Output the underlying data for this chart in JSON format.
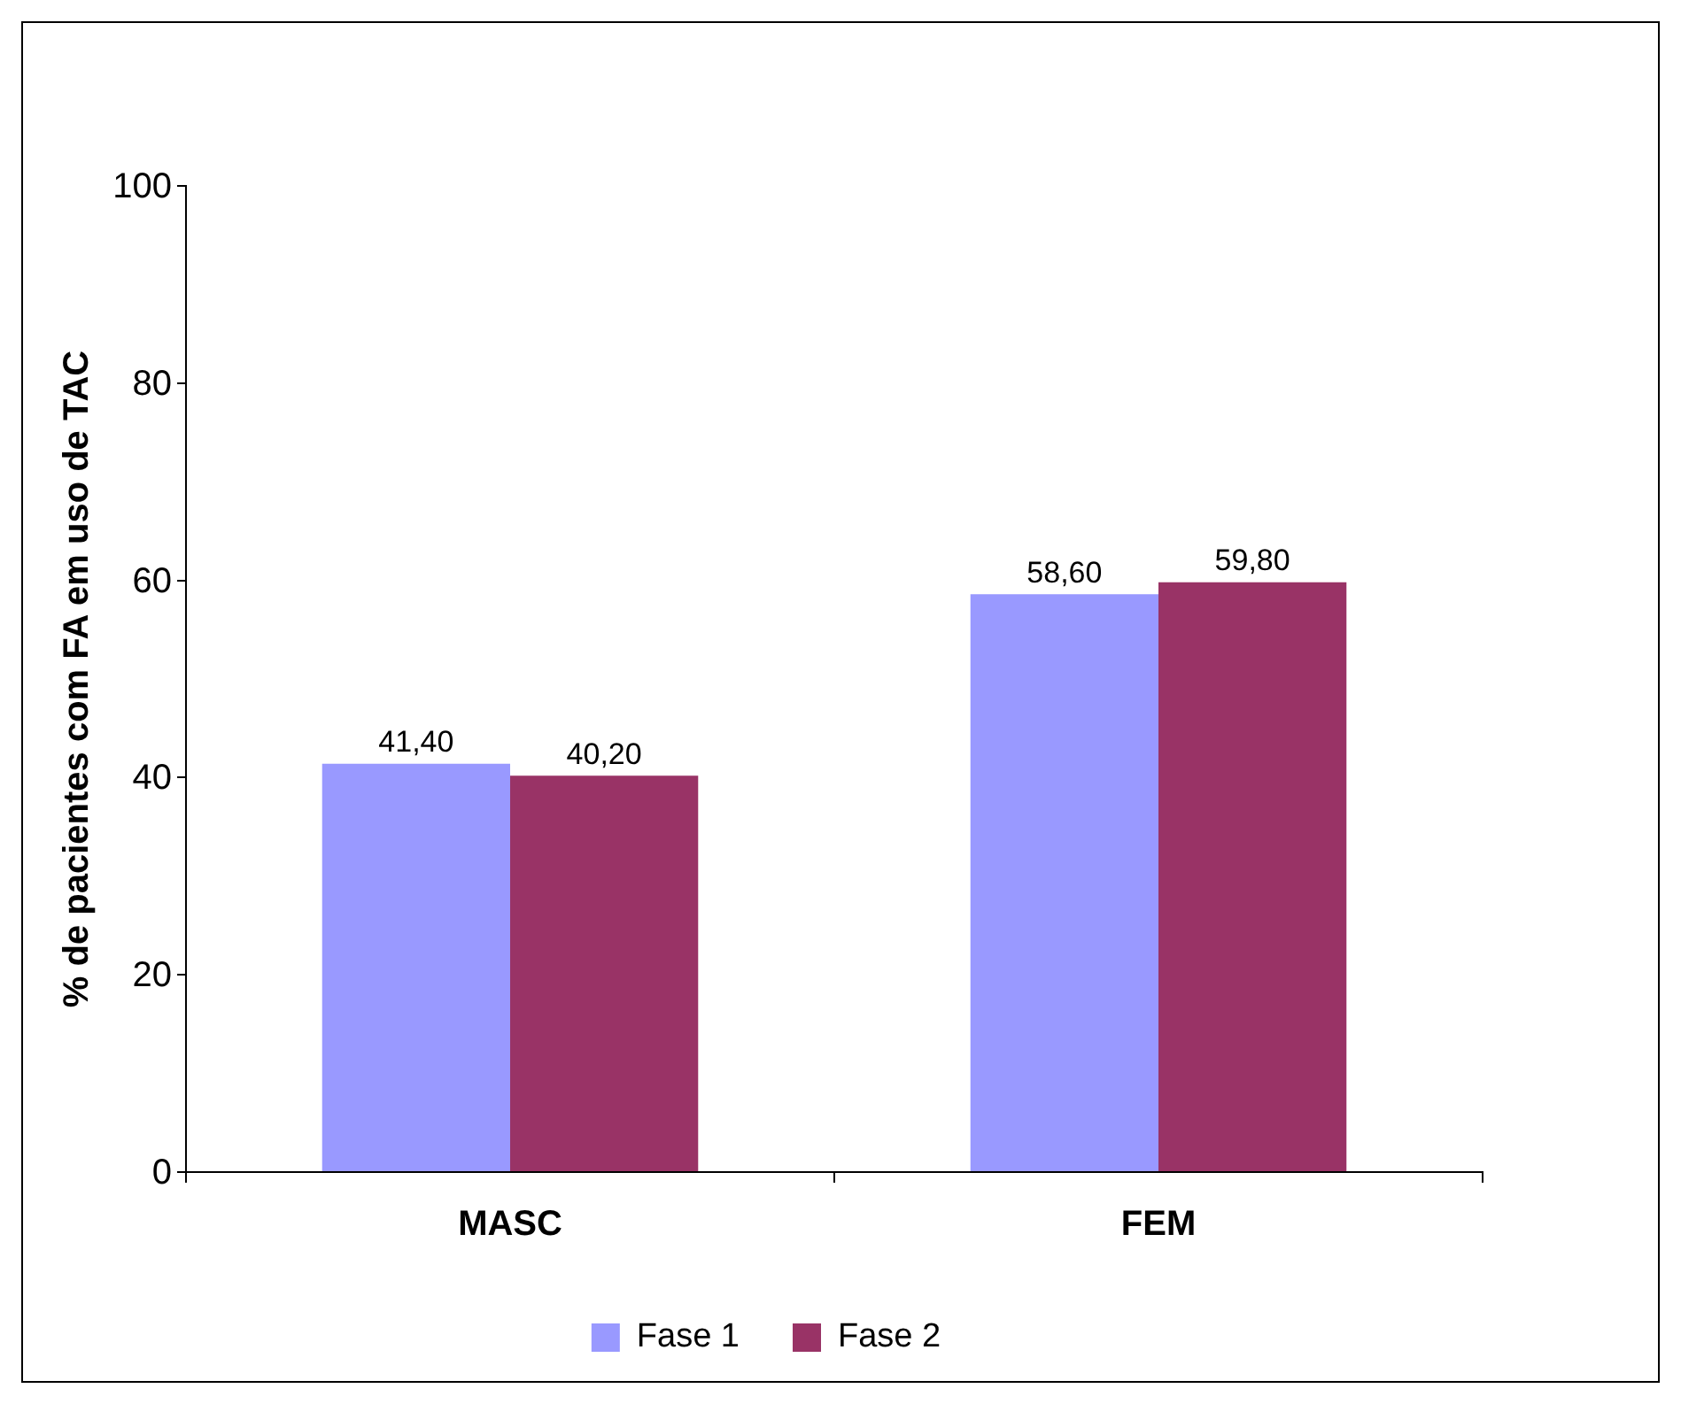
{
  "chart_data": {
    "type": "bar",
    "ylabel": "% de pacientes com FA em uso de TAC",
    "categories": [
      "MASC",
      "FEM"
    ],
    "series": [
      {
        "name": "Fase 1",
        "color": "#9999ff",
        "values": [
          41.4,
          58.6
        ],
        "value_labels": [
          "41,40",
          "58,60"
        ]
      },
      {
        "name": "Fase 2",
        "color": "#993366",
        "values": [
          40.2,
          59.8
        ],
        "value_labels": [
          "40,20",
          "59,80"
        ]
      }
    ],
    "ylim": [
      0,
      100
    ],
    "yticks": [
      0,
      20,
      40,
      60,
      80,
      100
    ],
    "grid": false,
    "legend": "bottom"
  }
}
